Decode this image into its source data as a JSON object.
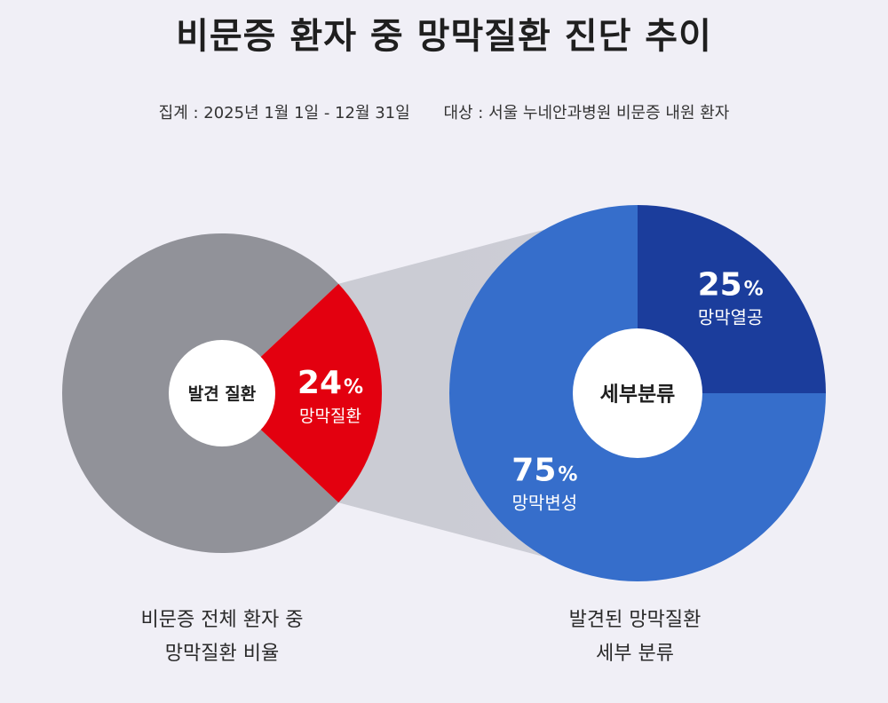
{
  "title": "비문증 환자 중 망막질환 진단 추이",
  "subtitle": {
    "period": "집계 : 2025년 1월 1일 - 12월 31일",
    "target": "대상 : 서울 누네안과병원 비문증 내원 환자"
  },
  "captions": {
    "left_line1": "비문증 전체 환자 중",
    "left_line2": "망막질환 비율",
    "right_line1": "발견된 망막질환",
    "right_line2": "세부 분류"
  },
  "colors": {
    "gray": "#919299",
    "red": "#e3000f",
    "blue": "#366ecb",
    "dark_blue": "#1b3d9c",
    "background": "#f0eff6"
  },
  "chart_data": [
    {
      "type": "pie",
      "center_label": "발견 질환",
      "slices": [
        {
          "label": "망막질환",
          "value": 24,
          "value_text": "24",
          "unit": "%",
          "color": "#e3000f",
          "show_label": true
        },
        {
          "label": "",
          "value": 76,
          "value_text": "",
          "unit": "",
          "color": "#919299",
          "show_label": false
        }
      ]
    },
    {
      "type": "pie",
      "center_label": "세부분류",
      "slices": [
        {
          "label": "망막열공",
          "value": 25,
          "value_text": "25",
          "unit": "%",
          "color": "#1b3d9c",
          "show_label": true
        },
        {
          "label": "망막변성",
          "value": 75,
          "value_text": "75",
          "unit": "%",
          "color": "#366ecb",
          "show_label": true
        }
      ]
    }
  ]
}
